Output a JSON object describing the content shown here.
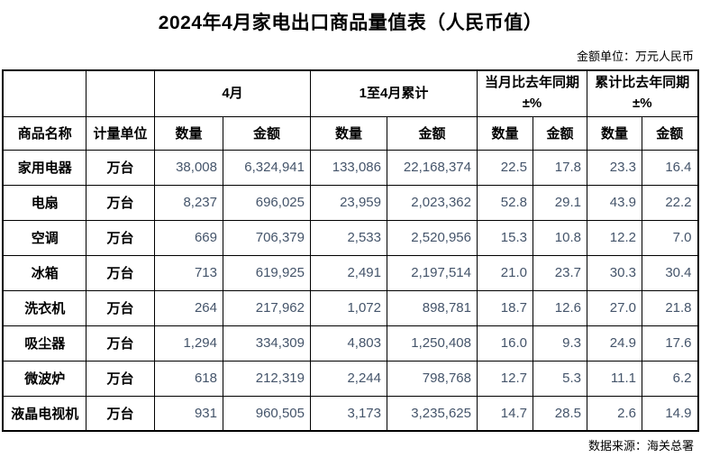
{
  "title": "2024年4月家电出口商品量值表（人民币值）",
  "unit_note": "金额单位：万元人民币",
  "source_note": "数据来源：海关总署",
  "colors": {
    "number_text": "#44546A",
    "border": "#000000",
    "background": "#ffffff"
  },
  "table": {
    "group_headers": {
      "april": "4月",
      "cumulative": "1至4月累计",
      "month_yoy": "当月比去年同期\n±%",
      "cumulative_yoy": "累计比去年同期\n±%"
    },
    "col_headers": {
      "product": "商品名称",
      "unit": "计量单位",
      "qty": "数量",
      "amount": "金额"
    },
    "rows": [
      {
        "cells": [
          "家用电器",
          "万台",
          "38,008",
          "6,324,941",
          "133,086",
          "22,168,374",
          "22.5",
          "17.8",
          "23.3",
          "16.4"
        ]
      },
      {
        "cells": [
          "电扇",
          "万台",
          "8,237",
          "696,025",
          "23,959",
          "2,023,362",
          "52.8",
          "29.1",
          "43.9",
          "22.2"
        ]
      },
      {
        "cells": [
          "空调",
          "万台",
          "669",
          "706,379",
          "2,533",
          "2,520,956",
          "15.3",
          "10.8",
          "12.2",
          "7.0"
        ]
      },
      {
        "cells": [
          "冰箱",
          "万台",
          "713",
          "619,925",
          "2,491",
          "2,197,514",
          "21.0",
          "23.7",
          "30.3",
          "30.4"
        ]
      },
      {
        "cells": [
          "洗衣机",
          "万台",
          "264",
          "217,962",
          "1,072",
          "898,781",
          "18.7",
          "12.6",
          "27.0",
          "21.8"
        ]
      },
      {
        "cells": [
          "吸尘器",
          "万台",
          "1,294",
          "334,309",
          "4,803",
          "1,250,408",
          "16.0",
          "9.3",
          "24.9",
          "17.6"
        ]
      },
      {
        "cells": [
          "微波炉",
          "万台",
          "618",
          "212,319",
          "2,244",
          "798,768",
          "12.7",
          "5.3",
          "11.1",
          "6.2"
        ]
      },
      {
        "cells": [
          "液晶电视机",
          "万台",
          "931",
          "960,505",
          "3,173",
          "3,235,625",
          "14.7",
          "28.5",
          "2.6",
          "14.9"
        ]
      }
    ]
  }
}
